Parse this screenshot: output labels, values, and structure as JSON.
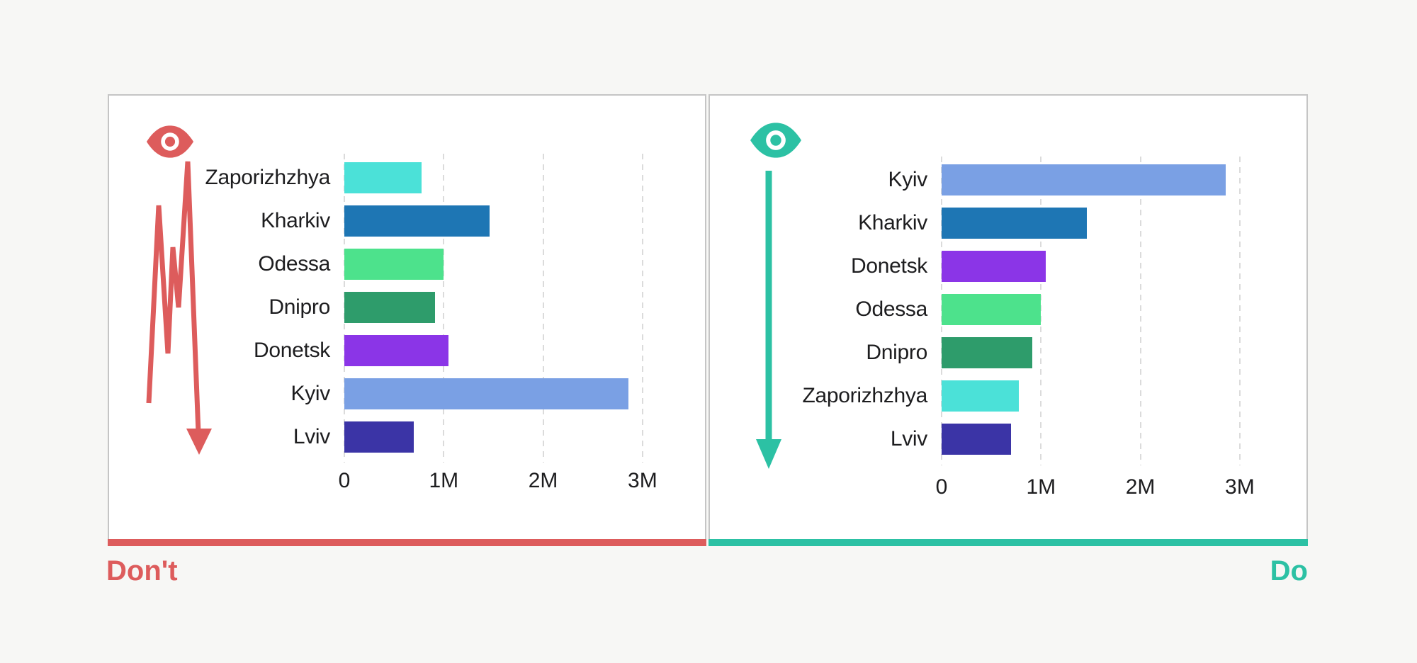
{
  "page": {
    "background_color": "#F7F7F5",
    "card_background": "#FFFFFF",
    "card_border_color": "#C5C5C5",
    "gridline_color": "#DBDBDB",
    "text_color": "#1D1D1F"
  },
  "panels": [
    {
      "name": "dont",
      "verdict_label": "Don't",
      "accent_color": "#DD5C5C",
      "icons": [
        "eye-icon",
        "zigzag-down-arrow-icon"
      ]
    },
    {
      "name": "do",
      "verdict_label": "Do",
      "accent_color": "#2CC1A4",
      "icons": [
        "eye-icon",
        "straight-down-arrow-icon"
      ]
    }
  ],
  "chart_data": [
    {
      "panel": "dont",
      "type": "bar",
      "orientation": "horizontal",
      "title": "",
      "sort": "unsorted",
      "categories": [
        "Zaporizhzhya",
        "Kharkiv",
        "Odessa",
        "Dnipro",
        "Donetsk",
        "Kyiv",
        "Lviv"
      ],
      "values_millions": [
        0.78,
        1.46,
        1.0,
        0.91,
        1.05,
        2.86,
        0.7
      ],
      "bar_colors": [
        "#4BE1D8",
        "#1E76B4",
        "#4DE28C",
        "#2E9C6B",
        "#8B35E7",
        "#7AA0E4",
        "#3B34A6"
      ],
      "x_ticks": [
        {
          "label": "0",
          "value_millions": 0
        },
        {
          "label": "1M",
          "value_millions": 1
        },
        {
          "label": "2M",
          "value_millions": 2
        },
        {
          "label": "3M",
          "value_millions": 3
        }
      ],
      "xlim_millions": [
        0,
        3.35
      ],
      "grid": "vertical-dashed",
      "legend": "none"
    },
    {
      "panel": "do",
      "type": "bar",
      "orientation": "horizontal",
      "title": "",
      "sort": "descending",
      "categories": [
        "Kyiv",
        "Kharkiv",
        "Donetsk",
        "Odessa",
        "Dnipro",
        "Zaporizhzhya",
        "Lviv"
      ],
      "values_millions": [
        2.86,
        1.46,
        1.05,
        1.0,
        0.91,
        0.78,
        0.7
      ],
      "bar_colors": [
        "#7AA0E4",
        "#1E76B4",
        "#8B35E7",
        "#4DE28C",
        "#2E9C6B",
        "#4BE1D8",
        "#3B34A6"
      ],
      "x_ticks": [
        {
          "label": "0",
          "value_millions": 0
        },
        {
          "label": "1M",
          "value_millions": 1
        },
        {
          "label": "2M",
          "value_millions": 2
        },
        {
          "label": "3M",
          "value_millions": 3
        }
      ],
      "xlim_millions": [
        0,
        3.35
      ],
      "grid": "vertical-dashed",
      "legend": "none"
    }
  ]
}
